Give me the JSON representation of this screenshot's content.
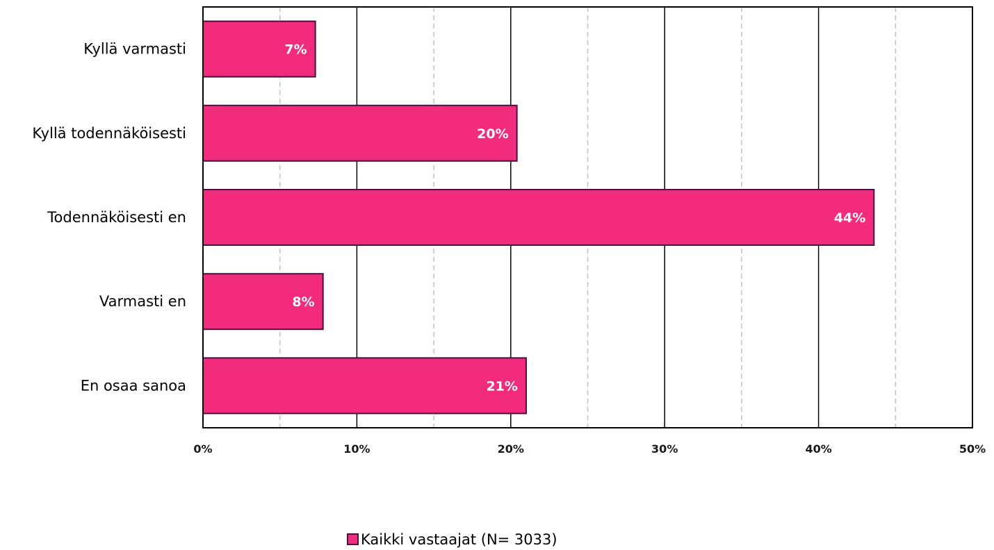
{
  "chart_data": {
    "type": "bar",
    "orientation": "horizontal",
    "categories": [
      "Kyllä varmasti",
      "Kyllä todennäköisesti",
      "Todennäköisesti en",
      "Varmasti en",
      "En osaa sanoa"
    ],
    "series": [
      {
        "name": "Kaikki vastaajat (N= 3033)",
        "values": [
          7.3,
          20.4,
          43.6,
          7.8,
          21.0
        ],
        "labels": [
          "7%",
          "20%",
          "44%",
          "8%",
          "21%"
        ],
        "color": "#f22b7d",
        "border_color": "#4a1040"
      }
    ],
    "xlim": [
      0,
      50
    ],
    "x_ticks": [
      0,
      10,
      20,
      30,
      40,
      50
    ],
    "x_tick_labels": [
      "0%",
      "10%",
      "20%",
      "30%",
      "40%",
      "50%"
    ],
    "minor_gridlines": [
      5,
      15,
      25,
      35,
      45
    ],
    "major_gridlines": true,
    "legend_position": "bottom-center",
    "title": "",
    "xlabel": "",
    "ylabel": ""
  }
}
